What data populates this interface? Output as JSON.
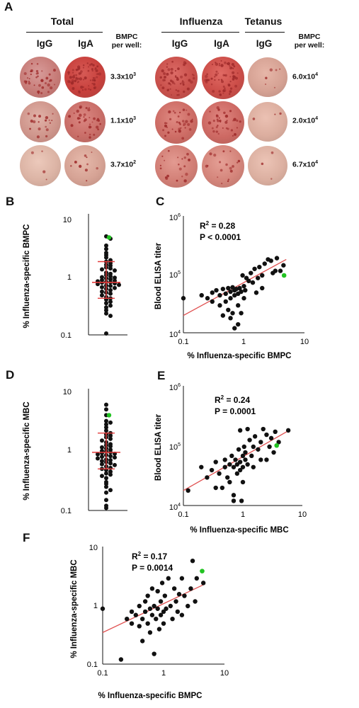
{
  "panel_a": {
    "letter": "A",
    "headers": {
      "total": "Total",
      "influenza": "Influenza",
      "tetanus": "Tetanus"
    },
    "subheaders": {
      "total_igg": "IgG",
      "total_iga": "IgA",
      "flu_igg": "IgG",
      "flu_iga": "IgA",
      "tet_igg": "IgG"
    },
    "bmpc_title_left": [
      "BMPC",
      "per well:"
    ],
    "bmpc_title_right": [
      "BMPC",
      "per well:"
    ],
    "bmpc_left": [
      "3.3x10",
      "1.1x10",
      "3.7x10"
    ],
    "bmpc_left_exp": [
      "3",
      "3",
      "2"
    ],
    "bmpc_right": [
      "6.0x10",
      "2.0x10",
      "6.7x10"
    ],
    "bmpc_right_exp": [
      "4",
      "4",
      "4"
    ]
  },
  "panel_letters": {
    "b": "B",
    "c": "C",
    "d": "D",
    "e": "E",
    "f": "F"
  },
  "chart_data": [
    {
      "id": "B",
      "type": "scatter",
      "ylabel": "% Influenza-specific BMPC",
      "yscale": "log",
      "ylim": [
        0.1,
        10
      ],
      "yticks": [
        "0.1",
        "1",
        "10"
      ],
      "median": 0.75,
      "iqr": [
        0.4,
        1.7
      ],
      "values": [
        4.6,
        4.2,
        3.2,
        2.8,
        2.4,
        2.2,
        2.0,
        1.8,
        1.7,
        1.6,
        1.5,
        1.45,
        1.35,
        1.3,
        1.25,
        1.2,
        1.1,
        1.05,
        1.0,
        0.95,
        0.92,
        0.9,
        0.88,
        0.85,
        0.82,
        0.8,
        0.78,
        0.76,
        0.75,
        0.74,
        0.72,
        0.7,
        0.68,
        0.66,
        0.65,
        0.62,
        0.6,
        0.58,
        0.55,
        0.52,
        0.5,
        0.48,
        0.45,
        0.42,
        0.4,
        0.38,
        0.35,
        0.33,
        0.3,
        0.28,
        0.25,
        0.22,
        0.2,
        0.1
      ],
      "highlight": {
        "value": 4.4,
        "color": "#22c322"
      }
    },
    {
      "id": "C",
      "type": "scatter",
      "xlabel": "% Influenza-specific BMPC",
      "ylabel": "Blood ELISA titer",
      "xscale": "log",
      "yscale": "log",
      "xlim": [
        0.1,
        10
      ],
      "ylim": [
        10000,
        1000000
      ],
      "xticks": [
        "0.1",
        "1",
        "10"
      ],
      "ytick_base": "10",
      "yticks_exp": [
        "4",
        "5",
        "6"
      ],
      "stats": [
        "R",
        "2",
        " = 0.28",
        "P < 0.0001"
      ],
      "fit": {
        "x": [
          0.1,
          5
        ],
        "y": [
          20000,
          190000
        ]
      },
      "points": [
        [
          0.1,
          40000
        ],
        [
          0.2,
          45000
        ],
        [
          0.25,
          40000
        ],
        [
          0.3,
          50000
        ],
        [
          0.3,
          35000
        ],
        [
          0.35,
          55000
        ],
        [
          0.4,
          45000
        ],
        [
          0.4,
          30000
        ],
        [
          0.45,
          58000
        ],
        [
          0.45,
          20000
        ],
        [
          0.5,
          48000
        ],
        [
          0.5,
          35000
        ],
        [
          0.55,
          60000
        ],
        [
          0.55,
          25000
        ],
        [
          0.6,
          52000
        ],
        [
          0.6,
          40000
        ],
        [
          0.6,
          18000
        ],
        [
          0.65,
          62000
        ],
        [
          0.65,
          22000
        ],
        [
          0.7,
          55000
        ],
        [
          0.7,
          45000
        ],
        [
          0.7,
          12000
        ],
        [
          0.75,
          58000
        ],
        [
          0.8,
          48000
        ],
        [
          0.8,
          30000
        ],
        [
          0.8,
          14000
        ],
        [
          0.85,
          60000
        ],
        [
          0.9,
          52000
        ],
        [
          0.9,
          22000
        ],
        [
          0.95,
          100000
        ],
        [
          1.0,
          65000
        ],
        [
          1.0,
          40000
        ],
        [
          1.05,
          55000
        ],
        [
          1.1,
          90000
        ],
        [
          1.2,
          80000
        ],
        [
          1.3,
          110000
        ],
        [
          1.4,
          75000
        ],
        [
          1.5,
          130000
        ],
        [
          1.6,
          50000
        ],
        [
          1.7,
          90000
        ],
        [
          1.8,
          140000
        ],
        [
          2.0,
          100000
        ],
        [
          2.0,
          60000
        ],
        [
          2.2,
          160000
        ],
        [
          2.5,
          190000
        ],
        [
          2.8,
          180000
        ],
        [
          3.0,
          110000
        ],
        [
          3.3,
          120000
        ],
        [
          3.5,
          200000
        ],
        [
          4.0,
          120000
        ],
        [
          4.5,
          150000
        ]
      ],
      "highlight": {
        "point": [
          4.6,
          100000
        ],
        "color": "#22c322"
      }
    },
    {
      "id": "D",
      "type": "scatter",
      "ylabel": "% Influenza-specific MBC",
      "yscale": "log",
      "ylim": [
        0.1,
        10
      ],
      "yticks": [
        "0.1",
        "1",
        "10"
      ],
      "median": 0.95,
      "iqr": [
        0.5,
        2.0
      ],
      "values": [
        6.0,
        5.0,
        4.0,
        3.2,
        3.0,
        2.8,
        2.5,
        2.2,
        2.0,
        1.9,
        1.8,
        1.7,
        1.6,
        1.5,
        1.4,
        1.3,
        1.25,
        1.2,
        1.15,
        1.1,
        1.05,
        1.0,
        0.98,
        0.95,
        0.92,
        0.9,
        0.88,
        0.85,
        0.82,
        0.8,
        0.78,
        0.75,
        0.72,
        0.7,
        0.68,
        0.65,
        0.62,
        0.6,
        0.58,
        0.55,
        0.52,
        0.5,
        0.48,
        0.45,
        0.42,
        0.4,
        0.38,
        0.35,
        0.3,
        0.28,
        0.25,
        0.22,
        0.2,
        0.15,
        0.12,
        0.11
      ],
      "highlight": {
        "value": 4.0,
        "color": "#22c322"
      }
    },
    {
      "id": "E",
      "type": "scatter",
      "xlabel": "% Influenza-specific MBC",
      "ylabel": "Blood ELISA titer",
      "xscale": "log",
      "yscale": "log",
      "xlim": [
        0.1,
        10
      ],
      "ylim": [
        10000,
        1000000
      ],
      "xticks": [
        "0.1",
        "1",
        "10"
      ],
      "ytick_base": "10",
      "yticks_exp": [
        "4",
        "5",
        "6"
      ],
      "stats": [
        "R",
        "2",
        " = 0.24",
        "P = 0.0001"
      ],
      "fit": {
        "x": [
          0.1,
          6
        ],
        "y": [
          18000,
          190000
        ]
      },
      "points": [
        [
          0.12,
          18000
        ],
        [
          0.2,
          45000
        ],
        [
          0.25,
          30000
        ],
        [
          0.3,
          40000
        ],
        [
          0.35,
          20000
        ],
        [
          0.35,
          55000
        ],
        [
          0.4,
          35000
        ],
        [
          0.45,
          20000
        ],
        [
          0.5,
          45000
        ],
        [
          0.5,
          60000
        ],
        [
          0.55,
          30000
        ],
        [
          0.6,
          50000
        ],
        [
          0.6,
          25000
        ],
        [
          0.65,
          70000
        ],
        [
          0.7,
          45000
        ],
        [
          0.7,
          15000
        ],
        [
          0.75,
          60000
        ],
        [
          0.8,
          50000
        ],
        [
          0.8,
          35000
        ],
        [
          0.85,
          90000
        ],
        [
          0.9,
          55000
        ],
        [
          0.9,
          40000
        ],
        [
          0.95,
          12000
        ],
        [
          1.0,
          70000
        ],
        [
          1.0,
          45000
        ],
        [
          1.0,
          25000
        ],
        [
          1.05,
          100000
        ],
        [
          1.1,
          60000
        ],
        [
          1.1,
          80000
        ],
        [
          1.2,
          50000
        ],
        [
          1.3,
          130000
        ],
        [
          1.4,
          70000
        ],
        [
          1.5,
          100000
        ],
        [
          1.5,
          45000
        ],
        [
          1.6,
          150000
        ],
        [
          1.8,
          90000
        ],
        [
          2.0,
          120000
        ],
        [
          2.0,
          60000
        ],
        [
          2.2,
          200000
        ],
        [
          2.5,
          160000
        ],
        [
          2.8,
          100000
        ],
        [
          3.0,
          140000
        ],
        [
          3.3,
          80000
        ],
        [
          3.5,
          180000
        ],
        [
          4.0,
          120000
        ],
        [
          5.8,
          190000
        ],
        [
          0.7,
          12000
        ],
        [
          1.2,
          200000
        ],
        [
          0.9,
          190000
        ],
        [
          2.5,
          60000
        ]
      ],
      "highlight": {
        "point": [
          3.7,
          105000
        ],
        "color": "#22c322"
      }
    },
    {
      "id": "F",
      "type": "scatter",
      "xlabel": "% Influenza-specific BMPC",
      "ylabel": "% Influenza-specific MBC",
      "xscale": "log",
      "yscale": "log",
      "xlim": [
        0.1,
        10
      ],
      "ylim": [
        0.1,
        10
      ],
      "xticks": [
        "0.1",
        "1",
        "10"
      ],
      "yticks": [
        "0.1",
        "1",
        "10"
      ],
      "stats": [
        "R",
        "2",
        " = 0.17",
        "P = 0.0014"
      ],
      "fit": {
        "x": [
          0.1,
          4.8
        ],
        "y": [
          0.35,
          2.4
        ]
      },
      "points": [
        [
          0.1,
          0.9
        ],
        [
          0.2,
          0.12
        ],
        [
          0.25,
          0.6
        ],
        [
          0.3,
          0.8
        ],
        [
          0.3,
          0.5
        ],
        [
          0.35,
          0.7
        ],
        [
          0.4,
          1.0
        ],
        [
          0.4,
          0.45
        ],
        [
          0.45,
          0.6
        ],
        [
          0.45,
          0.25
        ],
        [
          0.5,
          1.2
        ],
        [
          0.5,
          0.8
        ],
        [
          0.55,
          0.5
        ],
        [
          0.55,
          1.5
        ],
        [
          0.6,
          0.9
        ],
        [
          0.6,
          0.35
        ],
        [
          0.65,
          2.0
        ],
        [
          0.65,
          0.7
        ],
        [
          0.7,
          1.0
        ],
        [
          0.7,
          0.15
        ],
        [
          0.75,
          0.6
        ],
        [
          0.8,
          1.8
        ],
        [
          0.8,
          0.9
        ],
        [
          0.85,
          0.4
        ],
        [
          0.9,
          1.2
        ],
        [
          0.9,
          0.7
        ],
        [
          0.95,
          2.5
        ],
        [
          1.0,
          0.8
        ],
        [
          1.0,
          0.5
        ],
        [
          1.05,
          1.5
        ],
        [
          1.1,
          0.9
        ],
        [
          1.2,
          3.0
        ],
        [
          1.3,
          1.0
        ],
        [
          1.4,
          0.6
        ],
        [
          1.5,
          2.0
        ],
        [
          1.6,
          1.2
        ],
        [
          1.7,
          0.8
        ],
        [
          1.8,
          1.6
        ],
        [
          2.0,
          3.0
        ],
        [
          2.0,
          0.7
        ],
        [
          2.2,
          1.5
        ],
        [
          2.5,
          1.0
        ],
        [
          2.8,
          2.0
        ],
        [
          3.0,
          6.0
        ],
        [
          3.3,
          1.2
        ],
        [
          3.5,
          3.0
        ],
        [
          4.5,
          2.5
        ]
      ],
      "highlight": {
        "point": [
          4.3,
          4.0
        ],
        "color": "#22c322"
      }
    }
  ]
}
